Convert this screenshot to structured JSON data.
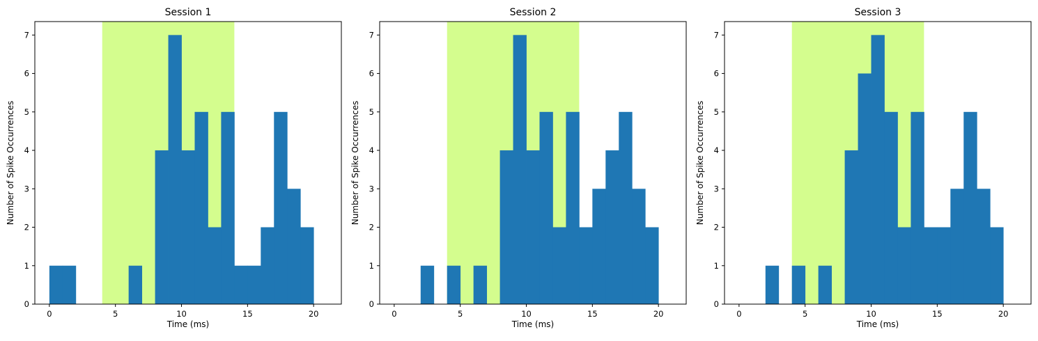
{
  "chart_data": [
    {
      "type": "bar",
      "title": "Session 1",
      "xlabel": "Time (ms)",
      "ylabel": "Number of Spike Occurrences",
      "xlim": [
        -1.1,
        22.1
      ],
      "ylim": [
        0,
        7.35
      ],
      "xticks": [
        0,
        5,
        10,
        15,
        20
      ],
      "yticks": [
        0,
        1,
        2,
        3,
        4,
        5,
        6,
        7
      ],
      "bin_width": 1,
      "bin_starts": [
        0,
        1,
        2,
        3,
        4,
        5,
        6,
        7,
        8,
        9,
        10,
        11,
        12,
        13,
        14,
        15,
        16,
        17,
        18,
        19
      ],
      "counts": [
        1,
        1,
        0,
        0,
        0,
        0,
        1,
        0,
        4,
        7,
        4,
        5,
        2,
        5,
        1,
        1,
        2,
        5,
        3,
        2
      ],
      "highlight": {
        "x_start": 4,
        "x_end": 14
      },
      "grid": false
    },
    {
      "type": "bar",
      "title": "Session 2",
      "xlabel": "Time (ms)",
      "ylabel": "Number of Spike Occurrences",
      "xlim": [
        -1.1,
        22.1
      ],
      "ylim": [
        0,
        7.35
      ],
      "xticks": [
        0,
        5,
        10,
        15,
        20
      ],
      "yticks": [
        0,
        1,
        2,
        3,
        4,
        5,
        6,
        7
      ],
      "bin_width": 1,
      "bin_starts": [
        0,
        1,
        2,
        3,
        4,
        5,
        6,
        7,
        8,
        9,
        10,
        11,
        12,
        13,
        14,
        15,
        16,
        17,
        18,
        19
      ],
      "counts": [
        0,
        0,
        1,
        0,
        1,
        0,
        1,
        0,
        4,
        7,
        4,
        5,
        2,
        5,
        2,
        3,
        4,
        5,
        3,
        2
      ],
      "highlight": {
        "x_start": 4,
        "x_end": 14
      },
      "grid": false
    },
    {
      "type": "bar",
      "title": "Session 3",
      "xlabel": "Time (ms)",
      "ylabel": "Number of Spike Occurrences",
      "xlim": [
        -1.1,
        22.1
      ],
      "ylim": [
        0,
        7.35
      ],
      "xticks": [
        0,
        5,
        10,
        15,
        20
      ],
      "yticks": [
        0,
        1,
        2,
        3,
        4,
        5,
        6,
        7
      ],
      "bin_width": 1,
      "bin_starts": [
        0,
        1,
        2,
        3,
        4,
        5,
        6,
        7,
        8,
        9,
        10,
        11,
        12,
        13,
        14,
        15,
        16,
        17,
        18,
        19
      ],
      "counts": [
        0,
        0,
        1,
        0,
        1,
        0,
        1,
        0,
        4,
        6,
        7,
        5,
        2,
        5,
        2,
        2,
        3,
        5,
        3,
        2
      ],
      "highlight": {
        "x_start": 4,
        "x_end": 14
      },
      "grid": false
    }
  ],
  "colors": {
    "bar": "#1f77b4",
    "highlight": "#d4fd8e",
    "axis": "#000000"
  }
}
